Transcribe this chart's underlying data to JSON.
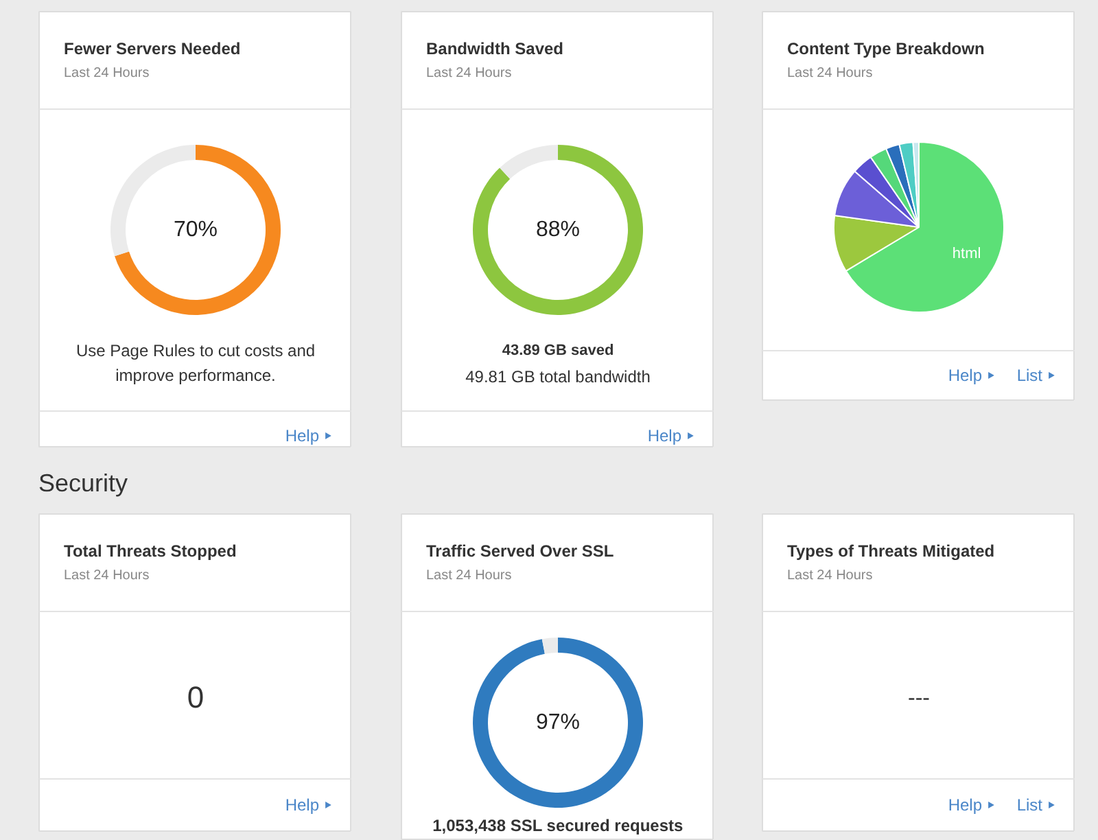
{
  "chart_data": [
    {
      "type": "donut",
      "title": "Fewer Servers Needed",
      "subtitle": "Last 24 Hours",
      "categories": [
        null,
        null
      ],
      "values": [
        70,
        30
      ],
      "colors": [
        "#f6891f",
        "#ebebeb"
      ],
      "value_labels": [
        "70%",
        null
      ],
      "annotations": [
        "Use Page Rules to cut costs and improve performance.",
        "Help"
      ]
    },
    {
      "type": "donut",
      "title": "Bandwidth Saved",
      "subtitle": "Last 24 Hours",
      "categories": [
        null,
        null
      ],
      "values": [
        88,
        12
      ],
      "colors": [
        "#8dc63f",
        "#ebebeb"
      ],
      "value_labels": [
        "88%",
        null
      ],
      "annotations": [
        "43.89 GB saved",
        "49.81 GB total bandwidth",
        "Help"
      ]
    },
    {
      "type": "pie",
      "title": "Content Type Breakdown",
      "subtitle": "Last 24 Hours",
      "categories": [
        "html",
        null,
        null,
        null,
        null,
        null,
        null,
        null
      ],
      "values": [
        66.4,
        10.8,
        9.2,
        4,
        3.3,
        2.6,
        2.6,
        1.1
      ],
      "colors": [
        "#5ce077",
        "#9cc83e",
        "#6c5fd8",
        "#5a4fd0",
        "#55d87a",
        "#2a6ebb",
        "#4ecdc4",
        "#c8e8f0"
      ],
      "annotations": [
        "Help",
        "List"
      ]
    },
    {
      "type": "other",
      "title": "Security"
    },
    {
      "type": "other",
      "title": "Total Threats Stopped",
      "subtitle": "Last 24 Hours",
      "annotations": [
        "0",
        "Help"
      ]
    },
    {
      "type": "donut",
      "title": "Traffic Served Over SSL",
      "subtitle": "Last 24 Hours",
      "categories": [
        null,
        null
      ],
      "values": [
        97,
        3
      ],
      "colors": [
        "#2f7bbf",
        "#ebebeb"
      ],
      "value_labels": [
        "97%",
        null
      ],
      "annotations": [
        "1,053,438 SSL secured requests"
      ]
    },
    {
      "type": "other",
      "title": "Types of Threats Mitigated",
      "subtitle": "Last 24 Hours",
      "annotations": [
        "---",
        "Help",
        "List"
      ]
    }
  ]
}
